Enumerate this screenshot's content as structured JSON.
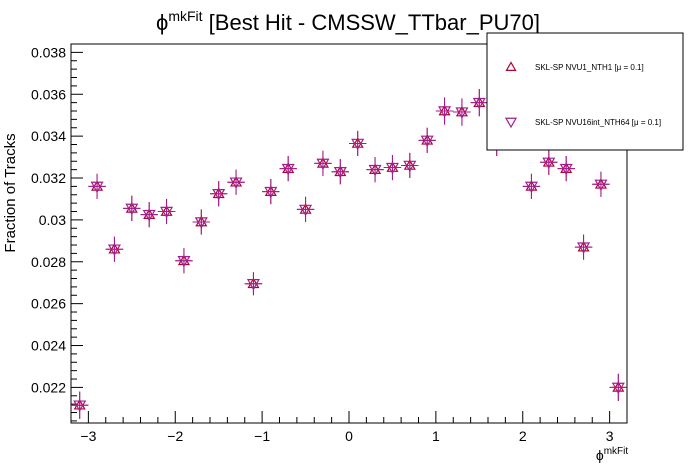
{
  "chart_data": {
    "type": "scatter",
    "title_main": "ϕ",
    "title_sup": "mkFit",
    "title_rest": " [Best Hit - CMSSW_TTbar_PU70]",
    "xlabel_main": "ϕ",
    "xlabel_sup": "mkFit",
    "ylabel": "Fraction of Tracks",
    "xlim": [
      -3.2,
      3.2
    ],
    "ylim": [
      0.0203,
      0.0384
    ],
    "x_tick_labels": [
      "−3",
      "−2",
      "−1",
      "0",
      "1",
      "2",
      "3"
    ],
    "y_tick_labels": [
      "0.022",
      "0.024",
      "0.026",
      "0.028",
      "0.03",
      "0.032",
      "0.034",
      "0.036",
      "0.038"
    ],
    "x_bin_half_width": 0.1,
    "legend_placement": "top-right",
    "series": [
      {
        "name": "SKL-SP NVU1_NTH1 [μ = 0.1]",
        "marker": "triangle-up",
        "color": "#b2002f",
        "x": [
          -3.1,
          -2.9,
          -2.7,
          -2.5,
          -2.3,
          -2.1,
          -1.9,
          -1.7,
          -1.5,
          -1.3,
          -1.1,
          -0.9,
          -0.7,
          -0.5,
          -0.3,
          -0.1,
          0.1,
          0.3,
          0.5,
          0.7,
          0.9,
          1.1,
          1.3,
          1.5,
          1.7,
          1.9,
          2.1,
          2.3,
          2.5,
          2.7,
          2.9,
          3.1
        ],
        "y": [
          0.02115,
          0.0316,
          0.0286,
          0.03055,
          0.03025,
          0.0304,
          0.02805,
          0.0299,
          0.03125,
          0.0318,
          0.02695,
          0.03135,
          0.03245,
          0.0305,
          0.0327,
          0.0323,
          0.03365,
          0.0324,
          0.0325,
          0.0326,
          0.0338,
          0.0352,
          0.03515,
          0.0356,
          0.0337,
          0.0343,
          0.0316,
          0.03275,
          0.03245,
          0.0287,
          0.0317,
          0.022
        ],
        "err": [
          0.00065,
          0.0006,
          0.0006,
          0.0006,
          0.0006,
          0.0006,
          0.0006,
          0.0006,
          0.0006,
          0.0006,
          0.00055,
          0.0006,
          0.0006,
          0.0006,
          0.0006,
          0.0006,
          0.0006,
          0.0006,
          0.0006,
          0.0006,
          0.0006,
          0.00065,
          0.00065,
          0.00065,
          0.00065,
          0.00065,
          0.0006,
          0.0006,
          0.0006,
          0.0006,
          0.0006,
          0.00065
        ]
      },
      {
        "name": "SKL-SP NVU16int_NTH64 [μ = 0.1]",
        "marker": "triangle-down",
        "color": "#a01f8f",
        "x": [
          -3.1,
          -2.9,
          -2.7,
          -2.5,
          -2.3,
          -2.1,
          -1.9,
          -1.7,
          -1.5,
          -1.3,
          -1.1,
          -0.9,
          -0.7,
          -0.5,
          -0.3,
          -0.1,
          0.1,
          0.3,
          0.5,
          0.7,
          0.9,
          1.1,
          1.3,
          1.5,
          1.7,
          1.9,
          2.1,
          2.3,
          2.5,
          2.7,
          2.9,
          3.1
        ],
        "y": [
          0.02115,
          0.0316,
          0.0286,
          0.03055,
          0.03025,
          0.0304,
          0.02805,
          0.0299,
          0.03125,
          0.0318,
          0.02695,
          0.03135,
          0.03245,
          0.0305,
          0.0327,
          0.0323,
          0.03365,
          0.0324,
          0.0325,
          0.0326,
          0.0338,
          0.0352,
          0.03515,
          0.0356,
          0.0337,
          0.0343,
          0.0316,
          0.03275,
          0.03245,
          0.0287,
          0.0317,
          0.022
        ],
        "err": [
          0.00065,
          0.0006,
          0.0006,
          0.0006,
          0.0006,
          0.0006,
          0.0006,
          0.0006,
          0.0006,
          0.0006,
          0.00055,
          0.0006,
          0.0006,
          0.0006,
          0.0006,
          0.0006,
          0.0006,
          0.0006,
          0.0006,
          0.0006,
          0.0006,
          0.00065,
          0.00065,
          0.00065,
          0.00065,
          0.00065,
          0.0006,
          0.0006,
          0.0006,
          0.0006,
          0.0006,
          0.00065
        ]
      }
    ]
  }
}
